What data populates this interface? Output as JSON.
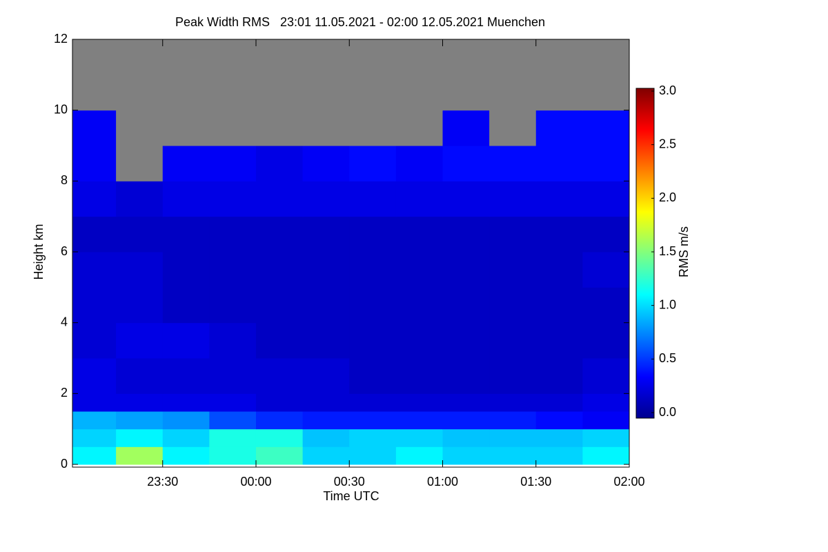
{
  "chart_data": {
    "type": "heatmap",
    "title": "Peak Width RMS   23:01 11.05.2021 - 02:00 12.05.2021 Muenchen",
    "x_label": "Time UTC",
    "y_label": "Height km",
    "colorbar_label": "RMS m/s",
    "xlim": [
      1381,
      1560
    ],
    "xticks": [
      {
        "value": 1410,
        "label": "23:30"
      },
      {
        "value": 1440,
        "label": "00:00"
      },
      {
        "value": 1470,
        "label": "00:30"
      },
      {
        "value": 1500,
        "label": "01:00"
      },
      {
        "value": 1530,
        "label": "01:30"
      },
      {
        "value": 1560,
        "label": "02:00"
      }
    ],
    "ylim": [
      0,
      12
    ],
    "yticks": [
      0,
      2,
      4,
      6,
      8,
      10,
      12
    ],
    "clim": [
      0,
      3
    ],
    "cticks": [
      {
        "value": 0,
        "label": "0.0"
      },
      0.5,
      {
        "value": 1,
        "label": "1.0"
      },
      1.5,
      {
        "value": 2,
        "label": "2.0"
      },
      2.5,
      {
        "value": 3,
        "label": "3.0"
      }
    ],
    "colormap": "jet",
    "missing_color": "#808080",
    "x_edges": [
      1381,
      1395,
      1410,
      1425,
      1440,
      1455,
      1470,
      1485,
      1500,
      1515,
      1530,
      1545,
      1560
    ],
    "y_edges": [
      0,
      0.5,
      1,
      1.5,
      2,
      3,
      4,
      5,
      6,
      7,
      8,
      9,
      10,
      12
    ],
    "values": [
      [
        1.1,
        1.6,
        1.1,
        1.2,
        1.3,
        1.0,
        1.0,
        1.1,
        1.0,
        1.0,
        1.0,
        1.1
      ],
      [
        1.0,
        1.1,
        1.0,
        1.2,
        1.2,
        0.95,
        1.0,
        1.0,
        0.95,
        0.95,
        0.95,
        1.0
      ],
      [
        0.9,
        0.85,
        0.8,
        0.6,
        0.5,
        0.45,
        0.45,
        0.45,
        0.45,
        0.45,
        0.4,
        0.35
      ],
      [
        0.3,
        0.3,
        0.3,
        0.3,
        0.25,
        0.25,
        0.25,
        0.25,
        0.25,
        0.25,
        0.25,
        0.3
      ],
      [
        0.3,
        0.25,
        0.25,
        0.25,
        0.25,
        0.25,
        0.2,
        0.2,
        0.2,
        0.2,
        0.2,
        0.25
      ],
      [
        0.25,
        0.3,
        0.3,
        0.25,
        0.2,
        0.2,
        0.2,
        0.2,
        0.2,
        0.2,
        0.2,
        0.2
      ],
      [
        0.25,
        0.25,
        0.2,
        0.2,
        0.2,
        0.2,
        0.2,
        0.2,
        0.2,
        0.2,
        0.2,
        0.2
      ],
      [
        0.25,
        0.25,
        0.2,
        0.2,
        0.2,
        0.2,
        0.2,
        0.2,
        0.2,
        0.2,
        0.2,
        0.25
      ],
      [
        0.2,
        0.2,
        0.2,
        0.2,
        0.2,
        0.2,
        0.2,
        0.2,
        0.2,
        0.2,
        0.2,
        0.2
      ],
      [
        0.3,
        0.25,
        0.3,
        0.3,
        0.3,
        0.3,
        0.3,
        0.3,
        0.3,
        0.3,
        0.3,
        0.3
      ],
      [
        0.35,
        null,
        0.35,
        0.35,
        0.3,
        0.35,
        0.4,
        0.35,
        0.4,
        0.4,
        0.4,
        0.4
      ],
      [
        0.35,
        null,
        null,
        null,
        null,
        null,
        null,
        null,
        0.35,
        null,
        0.4,
        0.4
      ],
      [
        null,
        null,
        null,
        null,
        null,
        null,
        null,
        null,
        null,
        null,
        null,
        null
      ]
    ]
  }
}
